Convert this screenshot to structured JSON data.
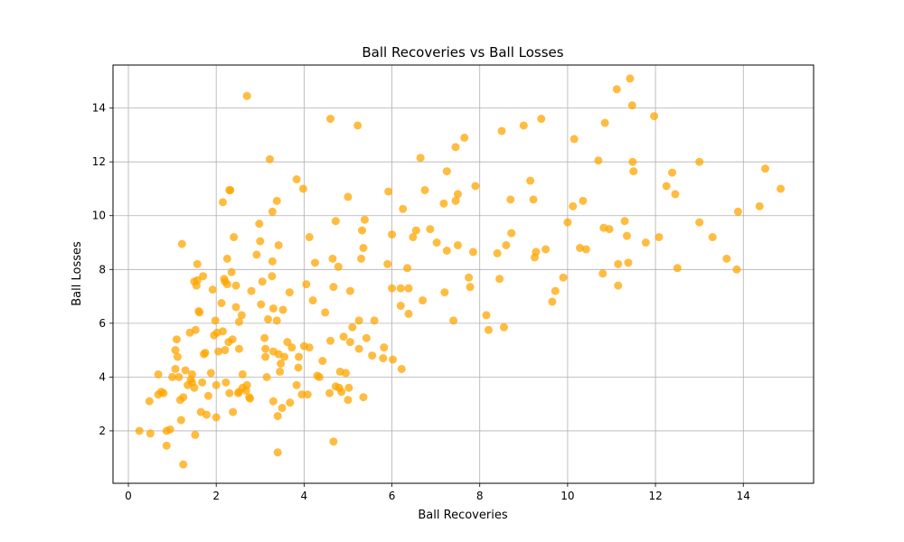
{
  "chart_data": {
    "type": "scatter",
    "title": "Ball Recoveries vs Ball Losses",
    "xlabel": "Ball Recoveries",
    "ylabel": "Ball Losses",
    "xlim": [
      -0.35,
      15.6
    ],
    "ylim": [
      0.05,
      15.6
    ],
    "xticks": [
      0,
      2,
      4,
      6,
      8,
      10,
      12,
      14
    ],
    "yticks": [
      2,
      4,
      6,
      8,
      10,
      12,
      14
    ],
    "grid": true,
    "marker_color": "#FFA500",
    "marker_alpha": 0.75,
    "series": [
      {
        "points": [
          [
            0.25,
            2.0
          ],
          [
            0.5,
            1.9
          ],
          [
            0.48,
            3.1
          ],
          [
            0.68,
            4.1
          ],
          [
            0.68,
            3.35
          ],
          [
            0.75,
            3.45
          ],
          [
            0.8,
            3.4
          ],
          [
            0.87,
            2.0
          ],
          [
            0.87,
            1.45
          ],
          [
            0.95,
            2.05
          ],
          [
            1.0,
            4.0
          ],
          [
            1.07,
            4.3
          ],
          [
            1.07,
            5.0
          ],
          [
            1.1,
            5.4
          ],
          [
            1.12,
            4.75
          ],
          [
            1.15,
            4.0
          ],
          [
            1.18,
            3.15
          ],
          [
            1.2,
            2.4
          ],
          [
            1.22,
            8.95
          ],
          [
            1.25,
            0.75
          ],
          [
            1.25,
            3.25
          ],
          [
            1.3,
            4.25
          ],
          [
            1.35,
            3.7
          ],
          [
            1.4,
            5.65
          ],
          [
            1.42,
            3.9
          ],
          [
            1.45,
            4.1
          ],
          [
            1.45,
            3.8
          ],
          [
            1.5,
            7.55
          ],
          [
            1.5,
            3.6
          ],
          [
            1.52,
            1.85
          ],
          [
            1.53,
            5.75
          ],
          [
            1.55,
            7.4
          ],
          [
            1.57,
            8.2
          ],
          [
            1.57,
            7.6
          ],
          [
            1.6,
            6.45
          ],
          [
            1.62,
            6.4
          ],
          [
            1.65,
            2.7
          ],
          [
            1.68,
            3.8
          ],
          [
            1.7,
            7.75
          ],
          [
            1.72,
            4.85
          ],
          [
            1.75,
            4.9
          ],
          [
            1.78,
            2.6
          ],
          [
            1.82,
            3.3
          ],
          [
            1.88,
            4.15
          ],
          [
            1.92,
            7.25
          ],
          [
            1.95,
            5.55
          ],
          [
            1.98,
            6.1
          ],
          [
            2.0,
            3.7
          ],
          [
            2.0,
            2.5
          ],
          [
            2.02,
            5.65
          ],
          [
            2.05,
            4.95
          ],
          [
            2.12,
            6.75
          ],
          [
            2.15,
            10.5
          ],
          [
            2.15,
            5.7
          ],
          [
            2.18,
            7.65
          ],
          [
            2.2,
            7.55
          ],
          [
            2.2,
            5.0
          ],
          [
            2.22,
            3.8
          ],
          [
            2.25,
            8.4
          ],
          [
            2.25,
            7.45
          ],
          [
            2.28,
            5.3
          ],
          [
            2.3,
            10.95
          ],
          [
            2.3,
            3.4
          ],
          [
            2.32,
            10.95
          ],
          [
            2.35,
            7.9
          ],
          [
            2.37,
            5.4
          ],
          [
            2.38,
            2.7
          ],
          [
            2.4,
            9.2
          ],
          [
            2.45,
            6.6
          ],
          [
            2.45,
            7.4
          ],
          [
            2.5,
            3.4
          ],
          [
            2.52,
            3.45
          ],
          [
            2.52,
            6.05
          ],
          [
            2.52,
            5.05
          ],
          [
            2.58,
            6.3
          ],
          [
            2.6,
            3.6
          ],
          [
            2.6,
            4.1
          ],
          [
            2.68,
            3.5
          ],
          [
            2.7,
            14.45
          ],
          [
            2.7,
            3.7
          ],
          [
            2.75,
            3.25
          ],
          [
            2.77,
            3.2
          ],
          [
            2.8,
            7.2
          ],
          [
            2.92,
            8.55
          ],
          [
            2.98,
            9.7
          ],
          [
            3.0,
            9.05
          ],
          [
            3.02,
            6.7
          ],
          [
            3.05,
            7.55
          ],
          [
            3.1,
            5.45
          ],
          [
            3.12,
            4.75
          ],
          [
            3.12,
            5.05
          ],
          [
            3.15,
            4.0
          ],
          [
            3.18,
            6.15
          ],
          [
            3.22,
            12.1
          ],
          [
            3.27,
            7.75
          ],
          [
            3.28,
            10.15
          ],
          [
            3.28,
            8.3
          ],
          [
            3.3,
            6.55
          ],
          [
            3.3,
            4.95
          ],
          [
            3.3,
            3.1
          ],
          [
            3.38,
            10.55
          ],
          [
            3.38,
            6.1
          ],
          [
            3.4,
            2.55
          ],
          [
            3.4,
            1.2
          ],
          [
            3.42,
            8.9
          ],
          [
            3.42,
            4.85
          ],
          [
            3.45,
            4.2
          ],
          [
            3.47,
            4.5
          ],
          [
            3.5,
            2.85
          ],
          [
            3.52,
            6.5
          ],
          [
            3.55,
            4.75
          ],
          [
            3.62,
            5.3
          ],
          [
            3.67,
            7.15
          ],
          [
            3.68,
            3.05
          ],
          [
            3.72,
            5.1
          ],
          [
            3.83,
            11.35
          ],
          [
            3.83,
            3.7
          ],
          [
            3.88,
            4.75
          ],
          [
            3.87,
            4.35
          ],
          [
            3.95,
            3.35
          ],
          [
            3.98,
            11.0
          ],
          [
            4.0,
            5.15
          ],
          [
            4.05,
            7.45
          ],
          [
            4.08,
            3.35
          ],
          [
            4.12,
            9.2
          ],
          [
            4.12,
            5.1
          ],
          [
            4.2,
            6.85
          ],
          [
            4.25,
            8.25
          ],
          [
            4.3,
            4.05
          ],
          [
            4.35,
            4.0
          ],
          [
            4.42,
            4.6
          ],
          [
            4.48,
            6.4
          ],
          [
            4.58,
            3.4
          ],
          [
            4.6,
            5.35
          ],
          [
            4.6,
            13.6
          ],
          [
            4.65,
            8.4
          ],
          [
            4.67,
            1.6
          ],
          [
            4.67,
            7.35
          ],
          [
            4.72,
            3.65
          ],
          [
            4.72,
            9.8
          ],
          [
            4.78,
            8.1
          ],
          [
            4.8,
            3.6
          ],
          [
            4.82,
            4.2
          ],
          [
            4.85,
            3.45
          ],
          [
            4.9,
            5.5
          ],
          [
            4.95,
            4.15
          ],
          [
            5.0,
            10.7
          ],
          [
            5.0,
            3.15
          ],
          [
            5.02,
            3.6
          ],
          [
            5.05,
            7.2
          ],
          [
            5.05,
            5.3
          ],
          [
            5.1,
            5.85
          ],
          [
            5.22,
            13.35
          ],
          [
            5.25,
            6.1
          ],
          [
            5.25,
            5.05
          ],
          [
            5.3,
            8.4
          ],
          [
            5.32,
            9.45
          ],
          [
            5.35,
            3.25
          ],
          [
            5.35,
            8.8
          ],
          [
            5.38,
            9.85
          ],
          [
            5.42,
            5.45
          ],
          [
            5.55,
            4.8
          ],
          [
            5.6,
            6.1
          ],
          [
            5.8,
            4.7
          ],
          [
            5.82,
            5.1
          ],
          [
            5.9,
            8.2
          ],
          [
            5.92,
            10.9
          ],
          [
            6.0,
            9.3
          ],
          [
            6.0,
            7.3
          ],
          [
            6.02,
            4.65
          ],
          [
            6.2,
            7.3
          ],
          [
            6.22,
            4.3
          ],
          [
            6.25,
            10.25
          ],
          [
            6.2,
            6.65
          ],
          [
            6.35,
            8.05
          ],
          [
            6.38,
            7.3
          ],
          [
            6.38,
            6.35
          ],
          [
            6.48,
            9.2
          ],
          [
            6.55,
            9.45
          ],
          [
            6.65,
            12.15
          ],
          [
            6.7,
            6.85
          ],
          [
            6.75,
            10.95
          ],
          [
            6.87,
            9.5
          ],
          [
            7.02,
            9.0
          ],
          [
            7.18,
            10.45
          ],
          [
            7.2,
            7.15
          ],
          [
            7.25,
            11.65
          ],
          [
            7.25,
            8.7
          ],
          [
            7.4,
            6.1
          ],
          [
            7.45,
            12.55
          ],
          [
            7.45,
            10.55
          ],
          [
            7.5,
            10.8
          ],
          [
            7.5,
            8.9
          ],
          [
            7.65,
            12.9
          ],
          [
            7.75,
            7.7
          ],
          [
            7.78,
            7.35
          ],
          [
            7.85,
            8.65
          ],
          [
            7.9,
            11.1
          ],
          [
            8.15,
            6.3
          ],
          [
            8.2,
            5.75
          ],
          [
            8.4,
            8.6
          ],
          [
            8.45,
            7.65
          ],
          [
            8.5,
            13.15
          ],
          [
            8.55,
            5.85
          ],
          [
            8.6,
            8.9
          ],
          [
            8.7,
            10.6
          ],
          [
            8.72,
            9.35
          ],
          [
            9.0,
            13.35
          ],
          [
            9.15,
            11.3
          ],
          [
            9.22,
            10.6
          ],
          [
            9.25,
            8.45
          ],
          [
            9.28,
            8.65
          ],
          [
            9.4,
            13.6
          ],
          [
            9.5,
            8.75
          ],
          [
            9.65,
            6.8
          ],
          [
            9.72,
            7.2
          ],
          [
            9.9,
            7.7
          ],
          [
            10.0,
            9.75
          ],
          [
            10.12,
            10.35
          ],
          [
            10.15,
            12.85
          ],
          [
            10.28,
            8.8
          ],
          [
            10.35,
            10.55
          ],
          [
            10.42,
            8.75
          ],
          [
            10.7,
            12.05
          ],
          [
            10.8,
            7.85
          ],
          [
            10.82,
            9.55
          ],
          [
            10.85,
            13.45
          ],
          [
            10.95,
            9.5
          ],
          [
            11.12,
            14.7
          ],
          [
            11.15,
            8.2
          ],
          [
            11.15,
            7.4
          ],
          [
            11.3,
            9.8
          ],
          [
            11.35,
            9.25
          ],
          [
            11.38,
            8.25
          ],
          [
            11.42,
            15.1
          ],
          [
            11.47,
            14.1
          ],
          [
            11.48,
            12.0
          ],
          [
            11.5,
            11.65
          ],
          [
            11.78,
            9.0
          ],
          [
            11.97,
            13.7
          ],
          [
            12.08,
            9.2
          ],
          [
            12.25,
            11.1
          ],
          [
            12.38,
            11.6
          ],
          [
            12.45,
            10.8
          ],
          [
            12.5,
            8.05
          ],
          [
            13.0,
            12.0
          ],
          [
            13.0,
            9.75
          ],
          [
            13.3,
            9.2
          ],
          [
            13.62,
            8.4
          ],
          [
            13.85,
            8.0
          ],
          [
            13.88,
            10.15
          ],
          [
            14.37,
            10.35
          ],
          [
            14.5,
            11.75
          ],
          [
            14.85,
            11.0
          ]
        ]
      }
    ]
  }
}
